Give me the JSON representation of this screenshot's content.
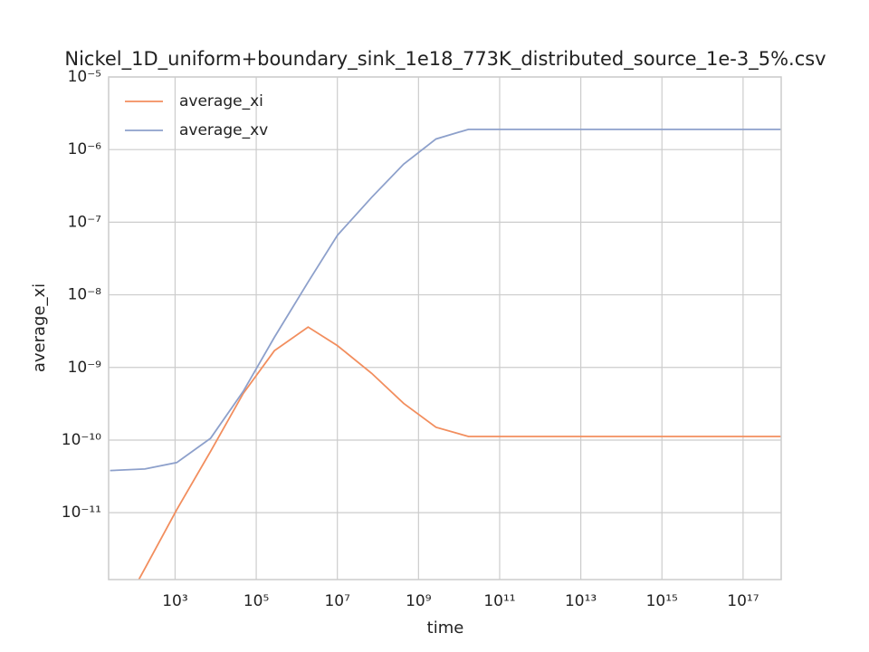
{
  "chart_data": {
    "type": "line",
    "title": "Nickel_1D_uniform+boundary_sink_1e18_773K_distributed_source_1e-3_5%.csv",
    "xlabel": "time",
    "ylabel": "average_xi",
    "x": [
      25,
      180,
      1100,
      7500,
      48000,
      280000,
      1900000,
      10000000,
      70000000,
      430000000,
      2700000000,
      17000000000,
      870000000000000000
    ],
    "series": [
      {
        "name": "average_xi",
        "color": "#f28e5e",
        "values": [
          2.3e-13,
          1.7e-12,
          1.1e-11,
          7e-11,
          4.4e-10,
          1.7e-09,
          3.6e-09,
          2e-09,
          8.3e-10,
          3.2e-10,
          1.5e-10,
          1.12e-10,
          1.12e-10
        ]
      },
      {
        "name": "average_xv",
        "color": "#8da0cb",
        "values": [
          3.8e-11,
          4e-11,
          4.9e-11,
          1.06e-10,
          4.7e-10,
          2.6e-09,
          1.5e-08,
          6.6e-08,
          2.2e-07,
          6.3e-07,
          1.4e-06,
          1.9e-06,
          1.9e-06
        ]
      }
    ],
    "xscale": "log",
    "yscale": "log",
    "xlim": [
      23,
      870000000000000000
    ],
    "ylim": [
      1.2e-12,
      1e-05
    ],
    "xticks": [
      {
        "value": 1000,
        "label": "10³"
      },
      {
        "value": 100000,
        "label": "10⁵"
      },
      {
        "value": 10000000,
        "label": "10⁷"
      },
      {
        "value": 1000000000,
        "label": "10⁹"
      },
      {
        "value": 100000000000,
        "label": "10¹¹"
      },
      {
        "value": 10000000000000,
        "label": "10¹³"
      },
      {
        "value": 1000000000000000,
        "label": "10¹⁵"
      },
      {
        "value": 100000000000000000,
        "label": "10¹⁷"
      }
    ],
    "yticks": [
      {
        "value": 1e-11,
        "label": "10⁻¹¹"
      },
      {
        "value": 1e-10,
        "label": "10⁻¹⁰"
      },
      {
        "value": 1e-09,
        "label": "10⁻⁹"
      },
      {
        "value": 1e-08,
        "label": "10⁻⁸"
      },
      {
        "value": 1e-07,
        "label": "10⁻⁷"
      },
      {
        "value": 1e-06,
        "label": "10⁻⁶"
      },
      {
        "value": 1e-05,
        "label": "10⁻⁵"
      }
    ],
    "grid": true,
    "legend": "upper left"
  }
}
